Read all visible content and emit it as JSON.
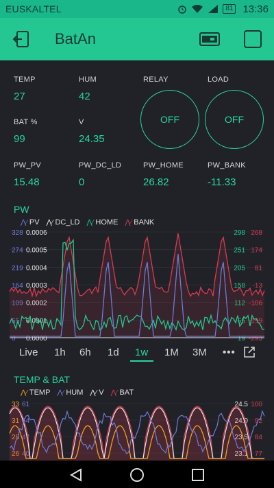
{
  "status": {
    "carrier": "EUSKALTEL",
    "battery": "81",
    "time": "13:36"
  },
  "appbar": {
    "title": "BatAn"
  },
  "metrics": [
    {
      "label": "TEMP",
      "value": "27"
    },
    {
      "label": "HUM",
      "value": "42"
    },
    {
      "label": "BAT %",
      "value": "99"
    },
    {
      "label": "V",
      "value": "24.35"
    },
    {
      "label": "PW_PV",
      "value": "15.48"
    },
    {
      "label": "PW_DC_LD",
      "value": "0"
    },
    {
      "label": "PW_HOME",
      "value": "26.82"
    },
    {
      "label": "PW_BANK",
      "value": "-11.33"
    }
  ],
  "buttons": [
    {
      "label": "RELAY",
      "state": "OFF"
    },
    {
      "label": "LOAD",
      "state": "OFF"
    }
  ],
  "chart1": {
    "title": "PW",
    "legend": [
      "PV",
      "DC_LD",
      "HOME",
      "BANK"
    ],
    "colors": {
      "PV": "#6f7bd8",
      "DC_LD": "#e8e8e8",
      "HOME": "#23c88f",
      "BANK": "#d63c52"
    },
    "axis_pv": [
      "328",
      "274",
      "219",
      "164",
      "109",
      "55",
      "0"
    ],
    "axis_dcld": [
      "0.0006",
      "0.0005",
      "0.0004",
      "0.0003",
      "0.0002",
      "0.0001",
      "0.0000"
    ],
    "axis_home": [
      "298",
      "251",
      "205",
      "158",
      "112",
      "65",
      "19"
    ],
    "axis_bank": [
      "268",
      "174",
      "81",
      "-13",
      "-106",
      "-199",
      "-293"
    ]
  },
  "timeframes": [
    "Live",
    "1h",
    "6h",
    "1d",
    "1w",
    "1M",
    "3M"
  ],
  "timeframe_active": "1w",
  "chart2": {
    "title": "TEMP & BAT",
    "legend": [
      "TEMP",
      "HUM",
      "V",
      "BAT"
    ],
    "colors": {
      "TEMP": "#f0a020",
      "HUM": "#6f7bd8",
      "V": "#e8e8e8",
      "BAT": "#d63c52"
    },
    "axis_temp": [
      "33",
      "31",
      "28",
      "26"
    ],
    "axis_hum": [
      "61",
      "54",
      "47",
      "40"
    ],
    "axis_v": [
      "24.5",
      "24.0",
      "23.5",
      "23.1"
    ],
    "axis_bat": [
      "100",
      "92",
      "84",
      "77"
    ]
  }
}
